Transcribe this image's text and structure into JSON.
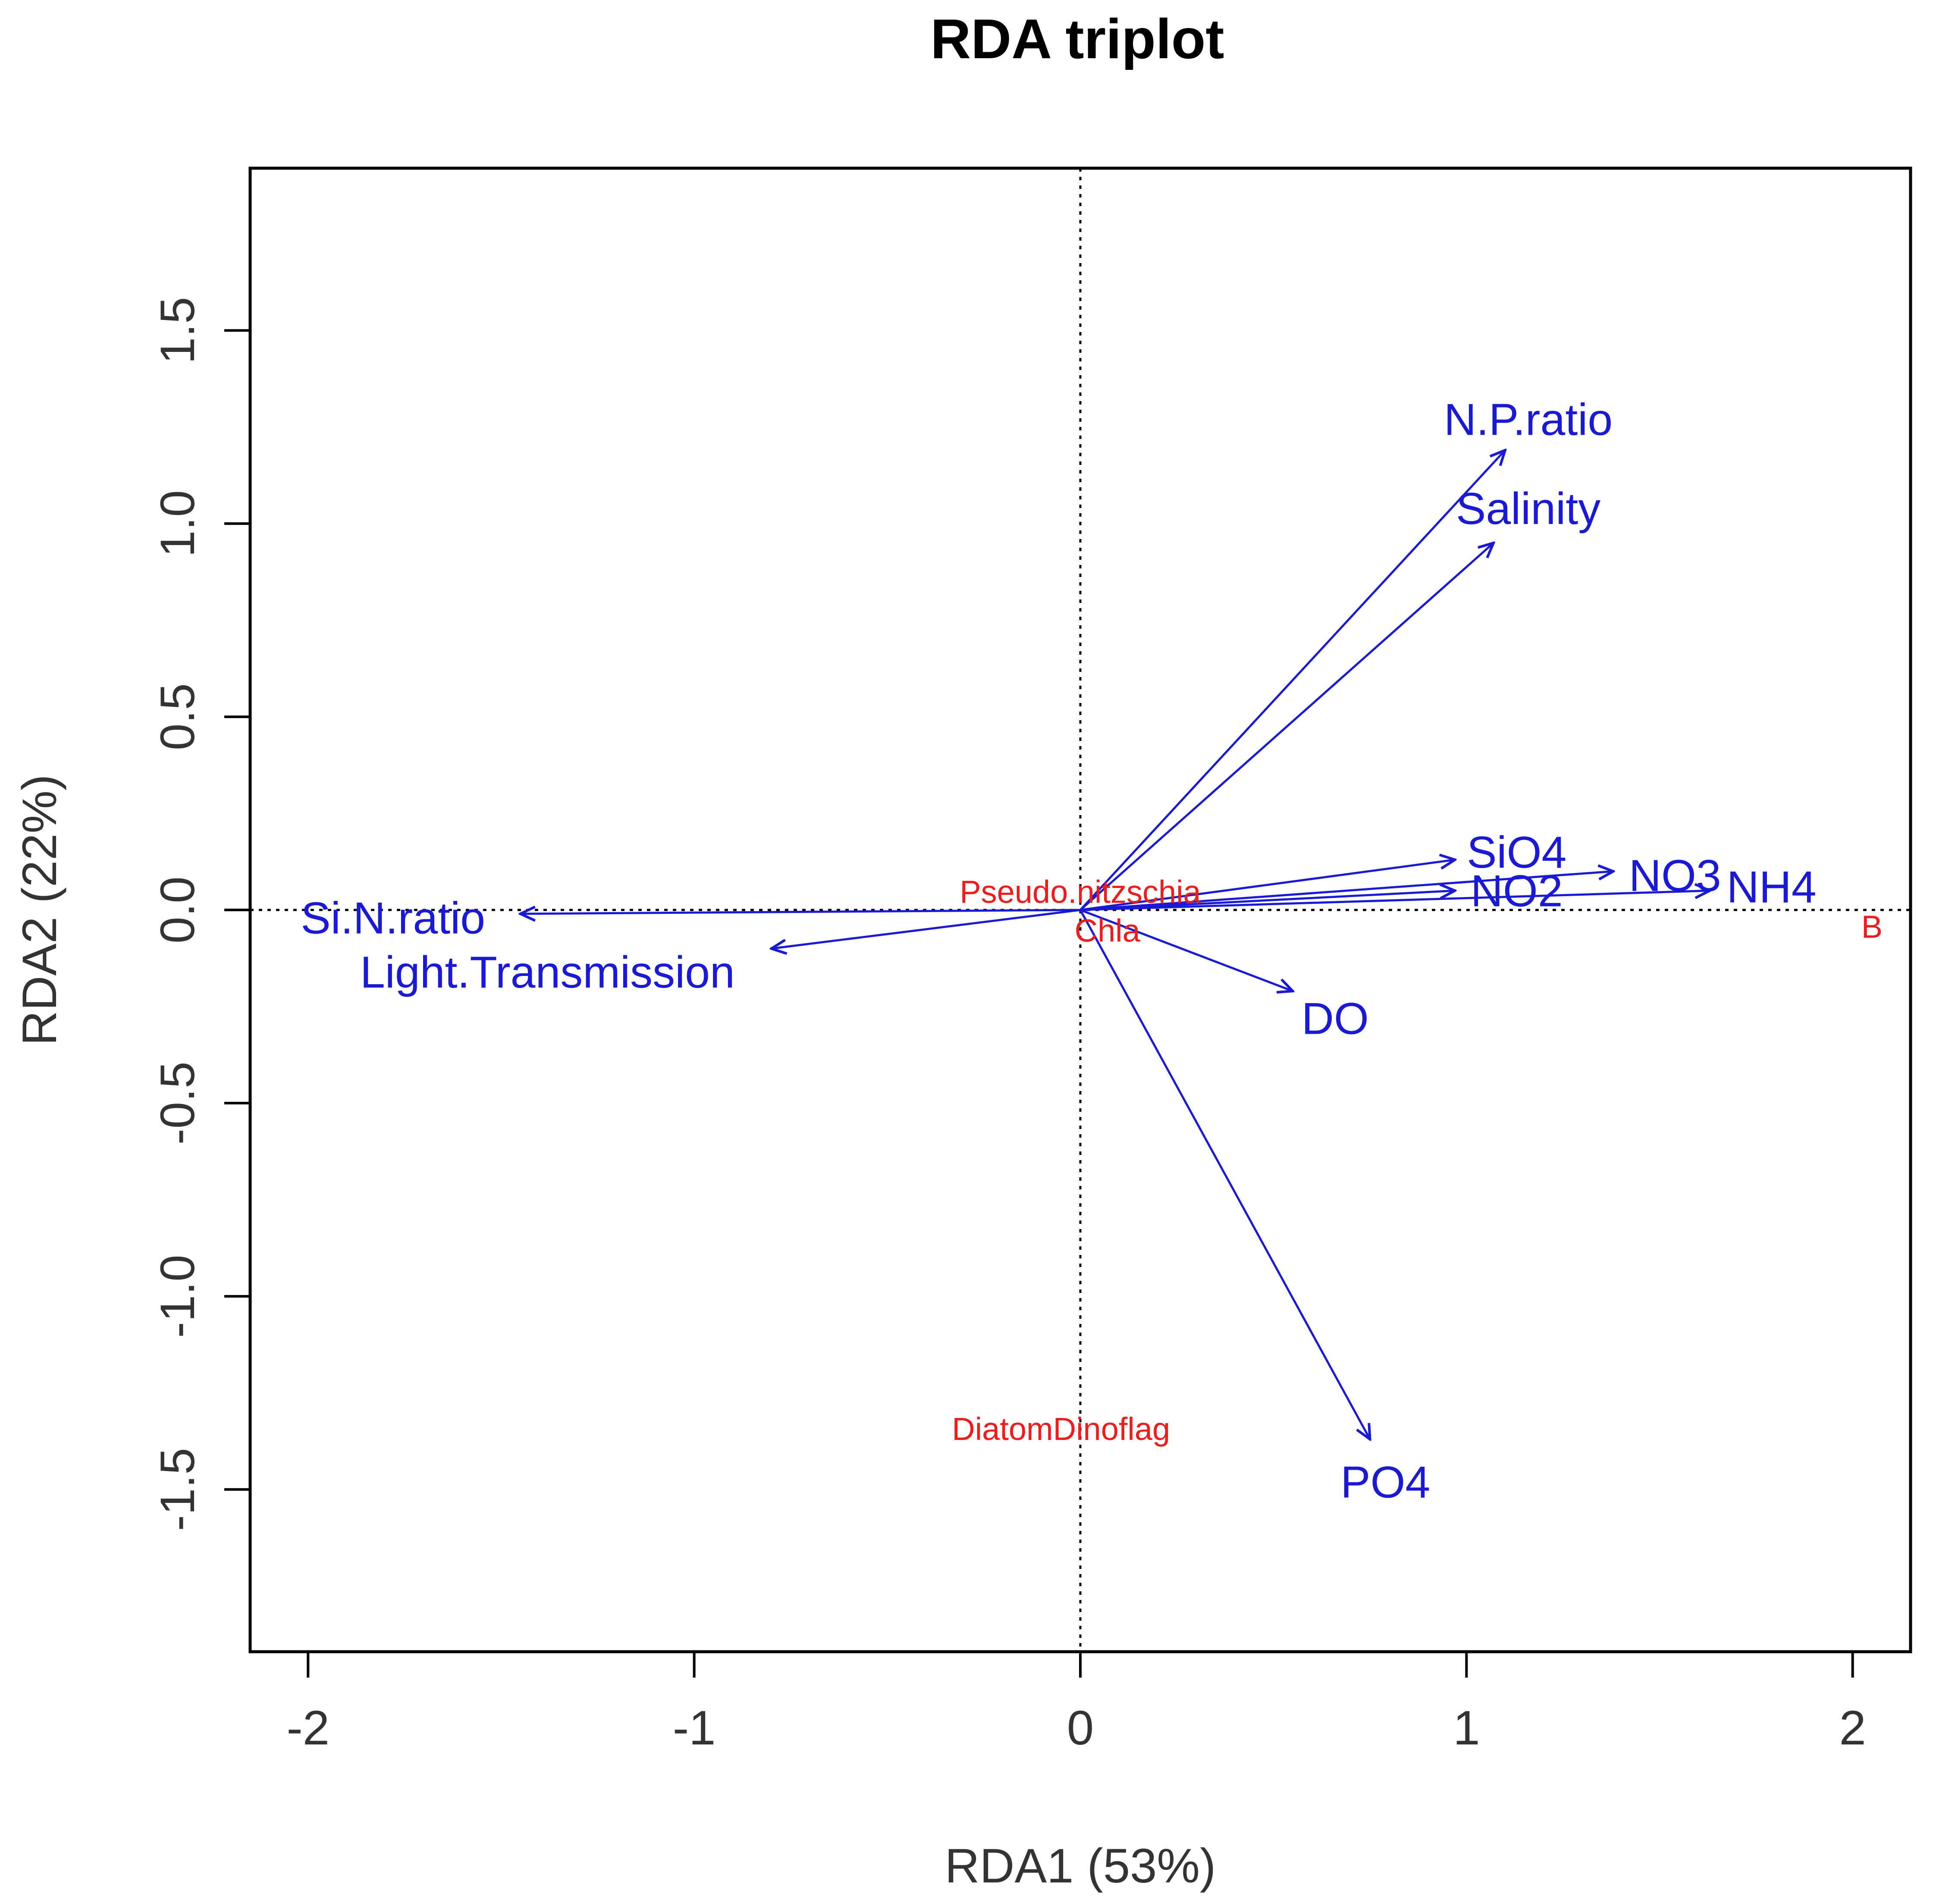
{
  "chart_data": {
    "type": "scatter",
    "subtype": "rda-triplot",
    "title": "RDA triplot",
    "xlabel": "RDA1 (53%)",
    "ylabel": "RDA2 (22%)",
    "xlim": [
      -2.15,
      2.15
    ],
    "ylim": [
      -1.92,
      1.92
    ],
    "xticks": [
      -2,
      -1,
      0,
      1,
      2
    ],
    "xtick_labels": [
      "-2",
      "-1",
      "0",
      "1",
      "2"
    ],
    "yticks": [
      -1.5,
      -1.0,
      -0.5,
      0.0,
      0.5,
      1.0,
      1.5
    ],
    "ytick_labels": [
      "-1.5",
      "-1.0",
      "-0.5",
      "0.0",
      "0.5",
      "1.0",
      "1.5"
    ],
    "reference_lines": {
      "x": 0,
      "y": 0,
      "style": "dotted"
    },
    "colors": {
      "biplot_arrows": "#1a1ad6",
      "species": "#ee1c1c",
      "axis": "#000000"
    },
    "biplot_arrows": [
      {
        "name": "N.P.ratio",
        "x": 1.1,
        "y": 1.19,
        "label_x": 1.16,
        "label_y": 1.26
      },
      {
        "name": "Salinity",
        "x": 1.07,
        "y": 0.95,
        "label_x": 1.16,
        "label_y": 1.03
      },
      {
        "name": "SiO4",
        "x": 0.97,
        "y": 0.13,
        "label_x": 1.13,
        "label_y": 0.14
      },
      {
        "name": "NO3",
        "x": 1.38,
        "y": 0.1,
        "label_x": 1.54,
        "label_y": 0.08
      },
      {
        "name": "NH4",
        "x": 1.63,
        "y": 0.05,
        "label_x": 1.79,
        "label_y": 0.05
      },
      {
        "name": "NO2",
        "x": 0.97,
        "y": 0.05,
        "label_x": 1.13,
        "label_y": 0.04
      },
      {
        "name": "Si.N.ratio",
        "x": -1.45,
        "y": -0.01,
        "label_x": -1.78,
        "label_y": -0.03
      },
      {
        "name": "Light.Transmission",
        "x": -0.8,
        "y": -0.1,
        "label_x": -1.38,
        "label_y": -0.17
      },
      {
        "name": "DO",
        "x": 0.55,
        "y": -0.21,
        "label_x": 0.66,
        "label_y": -0.29
      },
      {
        "name": "PO4",
        "x": 0.75,
        "y": -1.37,
        "label_x": 0.79,
        "label_y": -1.49
      }
    ],
    "species": [
      {
        "name": "Pseudo.nitzschia",
        "x": 0.0,
        "y": 0.04
      },
      {
        "name": "Chla",
        "x": 0.07,
        "y": -0.06
      },
      {
        "name": "DiatomDinoflag",
        "x": -0.05,
        "y": -1.35
      },
      {
        "name": "B",
        "x": 2.05,
        "y": -0.05
      }
    ]
  }
}
